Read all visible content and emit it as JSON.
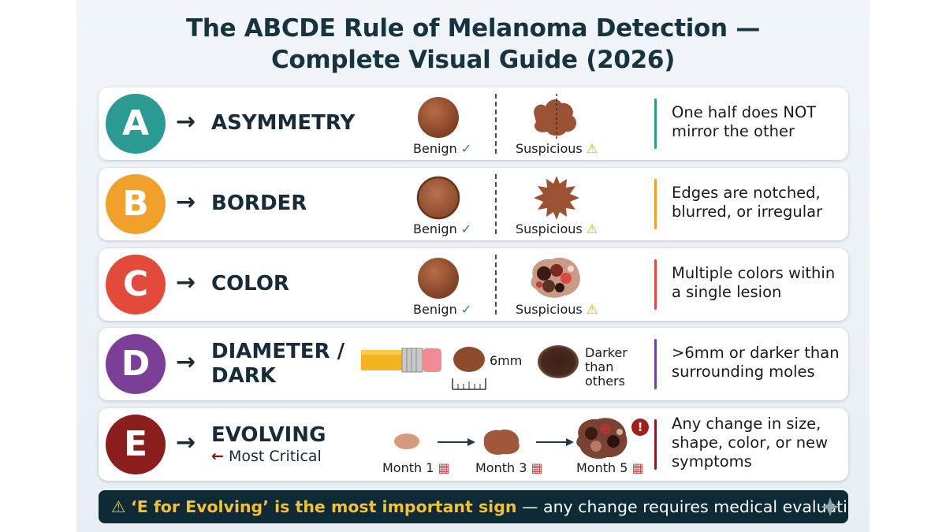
{
  "title": {
    "line1": "The ABCDE Rule of Melanoma Detection —",
    "line2": "Complete Visual Guide (2026)"
  },
  "rows": [
    {
      "letter": "A",
      "color": "#2a9a92",
      "arrow": "→",
      "label": "ASYMMETRY",
      "benign": "Benign",
      "suspicious": "Suspicious",
      "description": [
        "One half does NOT",
        "mirror the other"
      ]
    },
    {
      "letter": "B",
      "color": "#f2a02c",
      "arrow": "→",
      "label": "BORDER",
      "benign": "Benign",
      "suspicious": "Suspicious",
      "description": [
        "Edges are notched,",
        "blurred, or irregular"
      ]
    },
    {
      "letter": "C",
      "color": "#e24b3b",
      "arrow": "→",
      "label": "COLOR",
      "benign": "Benign",
      "suspicious": "Suspicious",
      "description": [
        "Multiple colors within",
        "a single lesion"
      ]
    },
    {
      "letter": "D",
      "color": "#7b3f98",
      "arrow": "→",
      "label_lines": [
        "DIAMETER /",
        "DARK"
      ],
      "size_label": "6mm",
      "dark_label": [
        "Darker",
        "than",
        "others"
      ],
      "description": [
        ">6mm or darker than",
        "surrounding moles"
      ]
    },
    {
      "letter": "E",
      "color": "#8c1d1d",
      "arrow": "→",
      "label": "EVOLVING",
      "back_arrow": "←",
      "note": "Most Critical",
      "months": [
        "Month 1",
        "Month 3",
        "Month 5"
      ],
      "alert": "!",
      "description": [
        "Any change in size,",
        "shape, color, or new",
        "symptoms"
      ]
    }
  ],
  "symbols": {
    "check": "✓",
    "warning": "⚠"
  },
  "banner": {
    "icon": "⚠",
    "highlight": "‘E for Evolving’ is the most important sign",
    "rest": " — any change requires medical evaluation"
  }
}
